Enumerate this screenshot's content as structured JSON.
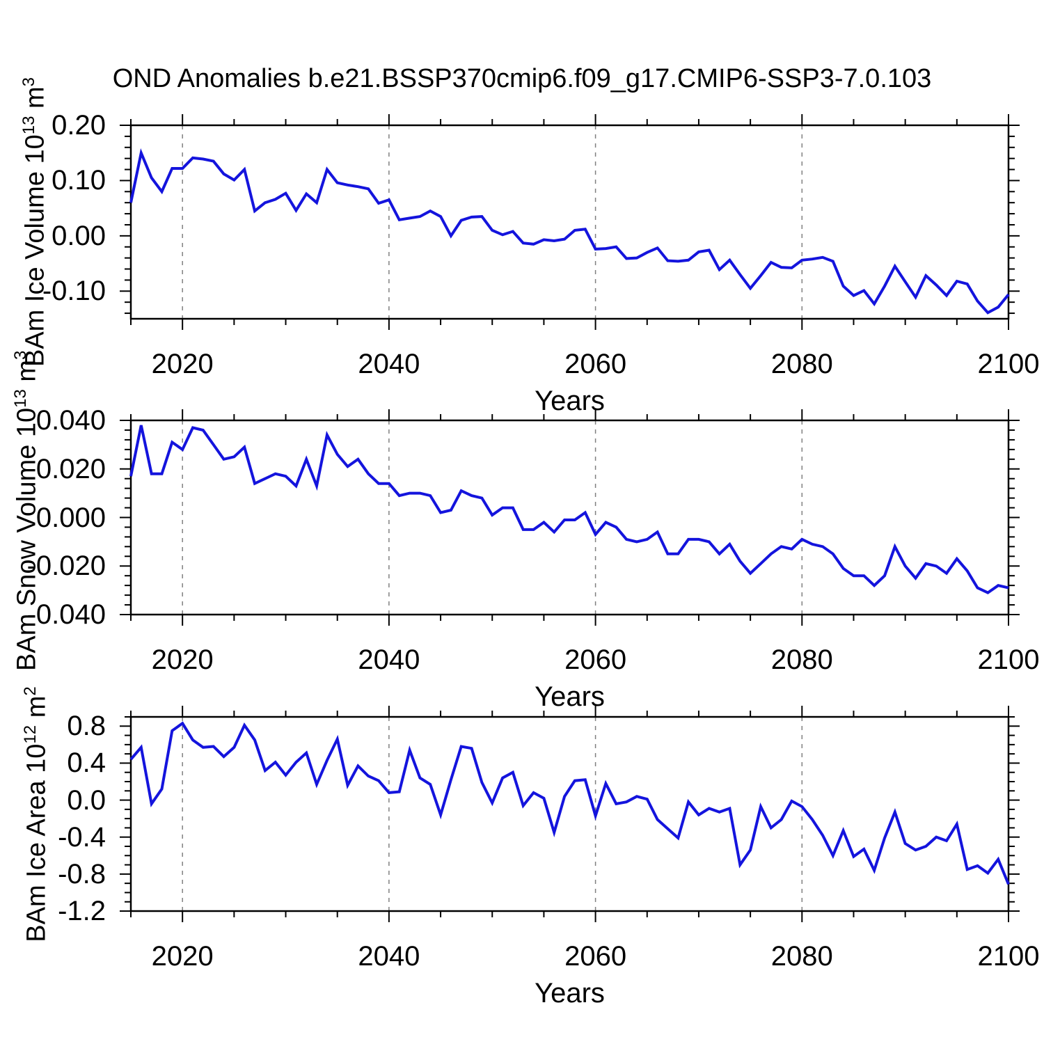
{
  "title": "OND Anomalies b.e21.BSSP370cmip6.f09_g17.CMIP6-SSP3-7.0.103",
  "colors": {
    "line": "#1414dd",
    "axis": "#000000",
    "grid": "#808080",
    "background": "#ffffff"
  },
  "x_axis": {
    "label": "Years",
    "start": 2015,
    "end": 2100,
    "major_ticks": [
      2020,
      2040,
      2060,
      2080,
      2100
    ],
    "tick_labels": [
      "2020",
      "2040",
      "2060",
      "2080",
      "2100"
    ],
    "minor_step": 5,
    "gridlines": [
      2020,
      2040,
      2060,
      2080
    ],
    "grid_style": "dashed"
  },
  "chart_data": [
    {
      "type": "line",
      "name": "ice-volume",
      "ylabel": {
        "prefix": "BAm Ice Volume 10",
        "sup1": "13",
        "mid": " m",
        "sup2": "3"
      },
      "ylim": [
        -0.15,
        0.2
      ],
      "yticks": [
        {
          "v": 0.2,
          "label": "0.20"
        },
        {
          "v": 0.1,
          "label": "0.10"
        },
        {
          "v": 0.0,
          "label": "0.00"
        },
        {
          "v": -0.1,
          "label": "-0.10"
        }
      ],
      "minor_step": 0.02,
      "x_start": 2015,
      "values": [
        0.06,
        0.15,
        0.105,
        0.08,
        0.122,
        0.122,
        0.141,
        0.139,
        0.135,
        0.112,
        0.101,
        0.12,
        0.045,
        0.06,
        0.066,
        0.077,
        0.046,
        0.076,
        0.06,
        0.12,
        0.096,
        0.092,
        0.089,
        0.085,
        0.059,
        0.065,
        0.029,
        0.032,
        0.035,
        0.045,
        0.035,
        0.0,
        0.028,
        0.034,
        0.035,
        0.01,
        0.002,
        0.008,
        -0.013,
        -0.015,
        -0.007,
        -0.009,
        -0.006,
        0.01,
        0.012,
        -0.024,
        -0.023,
        -0.02,
        -0.041,
        -0.04,
        -0.03,
        -0.022,
        -0.045,
        -0.046,
        -0.044,
        -0.029,
        -0.026,
        -0.061,
        -0.044,
        -0.07,
        -0.095,
        -0.072,
        -0.048,
        -0.057,
        -0.058,
        -0.044,
        -0.042,
        -0.039,
        -0.046,
        -0.091,
        -0.108,
        -0.099,
        -0.123,
        -0.091,
        -0.055,
        -0.083,
        -0.111,
        -0.072,
        -0.089,
        -0.108,
        -0.082,
        -0.087,
        -0.118,
        -0.139,
        -0.129,
        -0.106
      ]
    },
    {
      "type": "line",
      "name": "snow-volume",
      "ylabel": {
        "prefix": "BAm Snow Volume 10",
        "sup1": "13",
        "mid": " m",
        "sup2": "3"
      },
      "ylim": [
        -0.04,
        0.04
      ],
      "yticks": [
        {
          "v": 0.04,
          "label": "0.040"
        },
        {
          "v": 0.02,
          "label": "0.020"
        },
        {
          "v": 0.0,
          "label": "0.000"
        },
        {
          "v": -0.02,
          "label": "-0.020"
        },
        {
          "v": -0.04,
          "label": "-0.040"
        }
      ],
      "minor_step": 0.004,
      "x_start": 2015,
      "values": [
        0.017,
        0.038,
        0.018,
        0.018,
        0.031,
        0.028,
        0.037,
        0.036,
        0.03,
        0.024,
        0.025,
        0.029,
        0.014,
        0.016,
        0.018,
        0.017,
        0.013,
        0.024,
        0.013,
        0.034,
        0.026,
        0.021,
        0.024,
        0.018,
        0.014,
        0.014,
        0.009,
        0.01,
        0.01,
        0.009,
        0.002,
        0.003,
        0.011,
        0.009,
        0.008,
        0.001,
        0.004,
        0.004,
        -0.005,
        -0.005,
        -0.002,
        -0.006,
        -0.001,
        -0.001,
        0.002,
        -0.007,
        -0.002,
        -0.004,
        -0.009,
        -0.01,
        -0.009,
        -0.006,
        -0.015,
        -0.015,
        -0.009,
        -0.009,
        -0.01,
        -0.015,
        -0.011,
        -0.018,
        -0.023,
        -0.019,
        -0.015,
        -0.012,
        -0.013,
        -0.009,
        -0.011,
        -0.012,
        -0.015,
        -0.021,
        -0.024,
        -0.024,
        -0.028,
        -0.024,
        -0.012,
        -0.02,
        -0.025,
        -0.019,
        -0.02,
        -0.023,
        -0.017,
        -0.022,
        -0.029,
        -0.031,
        -0.028,
        -0.029
      ]
    },
    {
      "type": "line",
      "name": "ice-area",
      "ylabel": {
        "prefix": "BAm Ice Area 10",
        "sup1": "12",
        "mid": " m",
        "sup2": "2"
      },
      "ylim": [
        -1.2,
        0.9
      ],
      "yticks": [
        {
          "v": 0.8,
          "label": "0.8"
        },
        {
          "v": 0.4,
          "label": "0.4"
        },
        {
          "v": 0.0,
          "label": "0.0"
        },
        {
          "v": -0.4,
          "label": "-0.4"
        },
        {
          "v": -0.8,
          "label": "-0.8"
        },
        {
          "v": -1.2,
          "label": "-1.2"
        }
      ],
      "minor_step": 0.1,
      "x_start": 2015,
      "values": [
        0.44,
        0.57,
        -0.04,
        0.12,
        0.75,
        0.83,
        0.65,
        0.57,
        0.58,
        0.47,
        0.57,
        0.81,
        0.65,
        0.32,
        0.41,
        0.27,
        0.41,
        0.51,
        0.17,
        0.43,
        0.66,
        0.16,
        0.37,
        0.26,
        0.21,
        0.08,
        0.09,
        0.54,
        0.24,
        0.17,
        -0.16,
        0.22,
        0.58,
        0.56,
        0.19,
        -0.03,
        0.24,
        0.3,
        -0.06,
        0.08,
        0.02,
        -0.35,
        0.04,
        0.21,
        0.22,
        -0.17,
        0.18,
        -0.04,
        -0.02,
        0.04,
        0.01,
        -0.21,
        -0.31,
        -0.41,
        -0.02,
        -0.16,
        -0.09,
        -0.13,
        -0.09,
        -0.7,
        -0.54,
        -0.07,
        -0.3,
        -0.21,
        -0.01,
        -0.07,
        -0.21,
        -0.38,
        -0.6,
        -0.33,
        -0.61,
        -0.53,
        -0.76,
        -0.41,
        -0.13,
        -0.47,
        -0.54,
        -0.5,
        -0.4,
        -0.44,
        -0.26,
        -0.75,
        -0.71,
        -0.79,
        -0.64,
        -0.91
      ]
    }
  ]
}
